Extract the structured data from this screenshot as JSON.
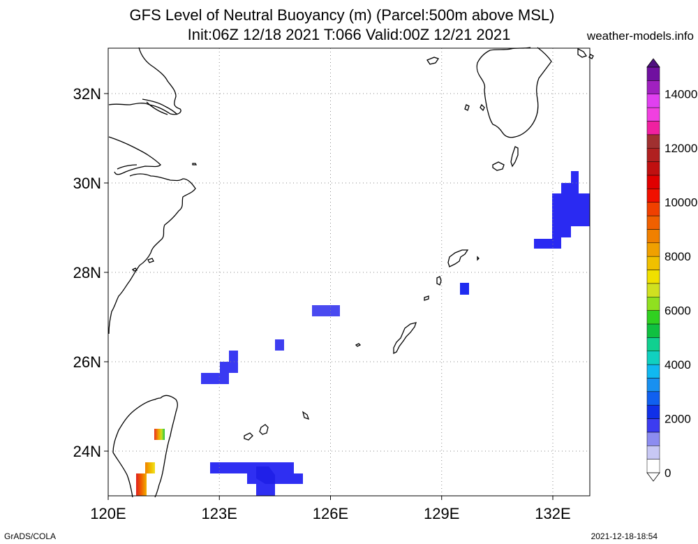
{
  "title_line1": "GFS Level of Neutral Buoyancy (m) (Parcel:500m above MSL)",
  "title_line2": "Init:06Z 12/18 2021 T:066 Valid:00Z 12/21 2021",
  "site": "weather-models.info",
  "footer_left": "GrADS/COLA",
  "footer_right": "2021-12-18-18:54",
  "map": {
    "lon_range": [
      120,
      133
    ],
    "lat_range": [
      23,
      33
    ],
    "grid": true,
    "lon_ticks": [
      {
        "value": 120,
        "label": "120E"
      },
      {
        "value": 123,
        "label": "123E"
      },
      {
        "value": 126,
        "label": "126E"
      },
      {
        "value": 129,
        "label": "129E"
      },
      {
        "value": 132,
        "label": "132E"
      }
    ],
    "lat_ticks": [
      {
        "value": 32,
        "label": "32N"
      },
      {
        "value": 30,
        "label": "30N"
      },
      {
        "value": 28,
        "label": "28N"
      },
      {
        "value": 26,
        "label": "26N"
      },
      {
        "value": 24,
        "label": "24N"
      }
    ],
    "colorbar": {
      "ticks": [
        {
          "value": 0,
          "label": "0"
        },
        {
          "value": 2000,
          "label": "2000"
        },
        {
          "value": 4000,
          "label": "4000"
        },
        {
          "value": 6000,
          "label": "6000"
        },
        {
          "value": 8000,
          "label": "8000"
        },
        {
          "value": 10000,
          "label": "10000"
        },
        {
          "value": 12000,
          "label": "12000"
        },
        {
          "value": 14000,
          "label": "14000"
        }
      ]
    }
  }
}
